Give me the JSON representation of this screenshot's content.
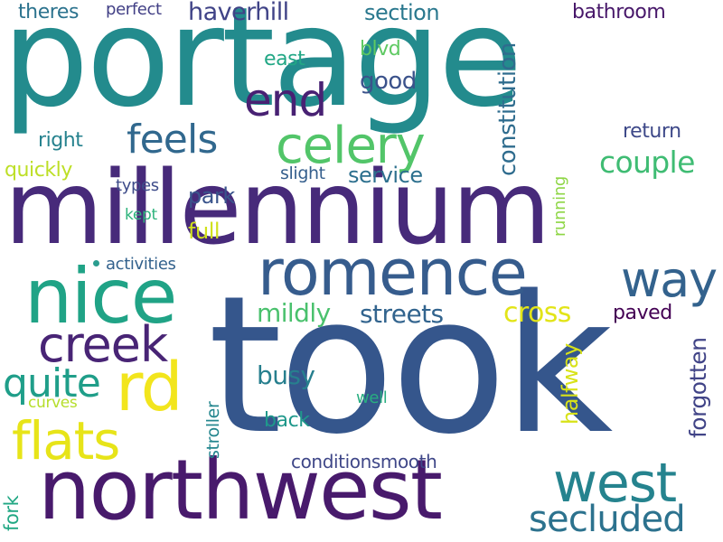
{
  "words": [
    {
      "text": "portage",
      "color": "#238b8d"
    },
    {
      "text": "millennium",
      "color": "#472a7a"
    },
    {
      "text": "took",
      "color": "#35568c"
    },
    {
      "text": "northwest",
      "color": "#481a6c"
    },
    {
      "text": "romence",
      "color": "#365c8d"
    },
    {
      "text": "nice",
      "color": "#20a386"
    },
    {
      "text": "rd",
      "color": "#f2e51d"
    },
    {
      "text": "creek",
      "color": "#482475"
    },
    {
      "text": "flats",
      "color": "#e7e419"
    },
    {
      "text": "celery",
      "color": "#52c569"
    },
    {
      "text": "west",
      "color": "#25838e"
    },
    {
      "text": "end",
      "color": "#482173"
    },
    {
      "text": "feels",
      "color": "#31688e"
    },
    {
      "text": "way",
      "color": "#33628d"
    },
    {
      "text": "quite",
      "color": "#1f9e89"
    },
    {
      "text": "secluded",
      "color": "#2c728e"
    },
    {
      "text": "couple",
      "color": "#3fbc73"
    },
    {
      "text": "mildly",
      "color": "#4ac16d"
    },
    {
      "text": "streets",
      "color": "#32648e"
    },
    {
      "text": "cross",
      "color": "#e2e418"
    },
    {
      "text": "busy",
      "color": "#277f8e"
    },
    {
      "text": "back",
      "color": "#1f988b"
    },
    {
      "text": "haverhill",
      "color": "#404387"
    },
    {
      "text": "section",
      "color": "#2a788e"
    },
    {
      "text": "bathroom",
      "color": "#48186a"
    },
    {
      "text": "good",
      "color": "#3b528b"
    },
    {
      "text": "east",
      "color": "#22a785"
    },
    {
      "text": "blvd",
      "color": "#5ec962"
    },
    {
      "text": "return",
      "color": "#3e4989"
    },
    {
      "text": "right",
      "color": "#26828e"
    },
    {
      "text": "quickly",
      "color": "#bddf26"
    },
    {
      "text": "service",
      "color": "#2d708e"
    },
    {
      "text": "slight",
      "color": "#355f8d"
    },
    {
      "text": "park",
      "color": "#3a548c"
    },
    {
      "text": "full",
      "color": "#d0e11c"
    },
    {
      "text": "paved",
      "color": "#440154"
    },
    {
      "text": "kept",
      "color": "#2eb37c"
    },
    {
      "text": "types",
      "color": "#3e4c8a"
    },
    {
      "text": "activities",
      "color": "#33628d"
    },
    {
      "text": "curves",
      "color": "#b5de2b"
    },
    {
      "text": "well",
      "color": "#28ae80"
    },
    {
      "text": "conditionsmooth",
      "color": "#3f4788"
    },
    {
      "text": "theres",
      "color": "#2c738e"
    },
    {
      "text": "perfect",
      "color": "#424086"
    },
    {
      "text": "constitution",
      "color": "#2f6c8e"
    },
    {
      "text": "running",
      "color": "#8ed645"
    },
    {
      "text": "halfway",
      "color": "#d8e219"
    },
    {
      "text": "forgotten",
      "color": "#414487"
    },
    {
      "text": "stroller",
      "color": "#24868e"
    },
    {
      "text": "fork",
      "color": "#22a884"
    }
  ]
}
